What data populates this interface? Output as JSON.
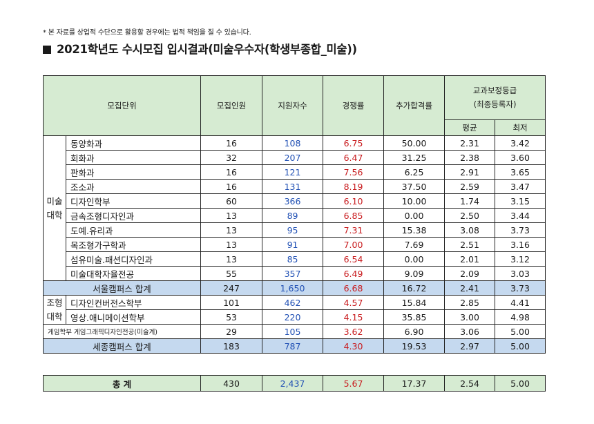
{
  "notice": "* 본 자료를 상업적 수단으로 활용할 경우에는 법적 책임을 질 수 있습니다.",
  "title": "2021학년도 수시모집 입시결과(미술우수자(학생부종합_미술))",
  "headers": {
    "unit": "모집단위",
    "quota": "모집인원",
    "applicants": "지원자수",
    "ratio": "경쟁률",
    "extra": "추가합격률",
    "grade_line1": "교과보정등급",
    "grade_line2": "(최종등록자)",
    "avg": "평균",
    "min": "최저"
  },
  "group1": {
    "college_line1": "미술",
    "college_line2": "대학",
    "rows": [
      {
        "name": "동양화과",
        "quota": "16",
        "applicants": "108",
        "ratio": "6.75",
        "extra": "50.00",
        "avg": "2.31",
        "min": "3.42"
      },
      {
        "name": "회화과",
        "quota": "32",
        "applicants": "207",
        "ratio": "6.47",
        "extra": "31.25",
        "avg": "2.38",
        "min": "3.60"
      },
      {
        "name": "판화과",
        "quota": "16",
        "applicants": "121",
        "ratio": "7.56",
        "extra": "6.25",
        "avg": "2.91",
        "min": "3.65"
      },
      {
        "name": "조소과",
        "quota": "16",
        "applicants": "131",
        "ratio": "8.19",
        "extra": "37.50",
        "avg": "2.59",
        "min": "3.47"
      },
      {
        "name": "디자인학부",
        "quota": "60",
        "applicants": "366",
        "ratio": "6.10",
        "extra": "10.00",
        "avg": "1.74",
        "min": "3.15"
      },
      {
        "name": "금속조형디자인과",
        "quota": "13",
        "applicants": "89",
        "ratio": "6.85",
        "extra": "0.00",
        "avg": "2.50",
        "min": "3.44"
      },
      {
        "name": "도예.유리과",
        "quota": "13",
        "applicants": "95",
        "ratio": "7.31",
        "extra": "15.38",
        "avg": "3.08",
        "min": "3.73"
      },
      {
        "name": "목조형가구학과",
        "quota": "13",
        "applicants": "91",
        "ratio": "7.00",
        "extra": "7.69",
        "avg": "2.51",
        "min": "3.16"
      },
      {
        "name": "섬유미술.패션디자인과",
        "quota": "13",
        "applicants": "85",
        "ratio": "6.54",
        "extra": "0.00",
        "avg": "2.01",
        "min": "3.12"
      },
      {
        "name": "미술대학자율전공",
        "quota": "55",
        "applicants": "357",
        "ratio": "6.49",
        "extra": "9.09",
        "avg": "2.09",
        "min": "3.03"
      }
    ]
  },
  "seoul_total": {
    "name": "서울캠퍼스 합계",
    "quota": "247",
    "applicants": "1,650",
    "ratio": "6.68",
    "extra": "16.72",
    "avg": "2.41",
    "min": "3.73"
  },
  "group2": {
    "college_line1": "조형",
    "college_line2": "대학",
    "rows": [
      {
        "name": "디자인컨버전스학부",
        "quota": "101",
        "applicants": "462",
        "ratio": "4.57",
        "extra": "15.84",
        "avg": "2.85",
        "min": "4.41"
      },
      {
        "name": "영상.애니메이션학부",
        "quota": "53",
        "applicants": "220",
        "ratio": "4.15",
        "extra": "35.85",
        "avg": "3.00",
        "min": "4.98"
      }
    ]
  },
  "game_row": {
    "name": "게임학부 게임그래픽디자인전공(미술계)",
    "quota": "29",
    "applicants": "105",
    "ratio": "3.62",
    "extra": "6.90",
    "avg": "3.06",
    "min": "5.00"
  },
  "sejong_total": {
    "name": "세종캠퍼스 합계",
    "quota": "183",
    "applicants": "787",
    "ratio": "4.30",
    "extra": "19.53",
    "avg": "2.97",
    "min": "5.00"
  },
  "grand_total": {
    "name": "총 계",
    "quota": "430",
    "applicants": "2,437",
    "ratio": "5.67",
    "extra": "17.37",
    "avg": "2.54",
    "min": "5.00"
  },
  "colors": {
    "header_green": "#d6ebd2",
    "subtotal_blue": "#c5d9ef",
    "applicant_blue": "#1f4fb4",
    "ratio_red": "#c8191c"
  }
}
